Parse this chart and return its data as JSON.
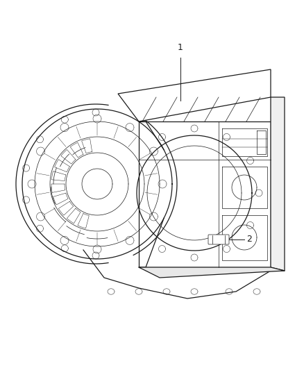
{
  "background_color": "#ffffff",
  "line_color": "#1a1a1a",
  "label_color": "#1a1a1a",
  "label_1": "1",
  "label_2": "2",
  "figsize": [
    4.38,
    5.33
  ],
  "dpi": 100,
  "lw_main": 0.9,
  "lw_thin": 0.5,
  "lw_thick": 1.1
}
